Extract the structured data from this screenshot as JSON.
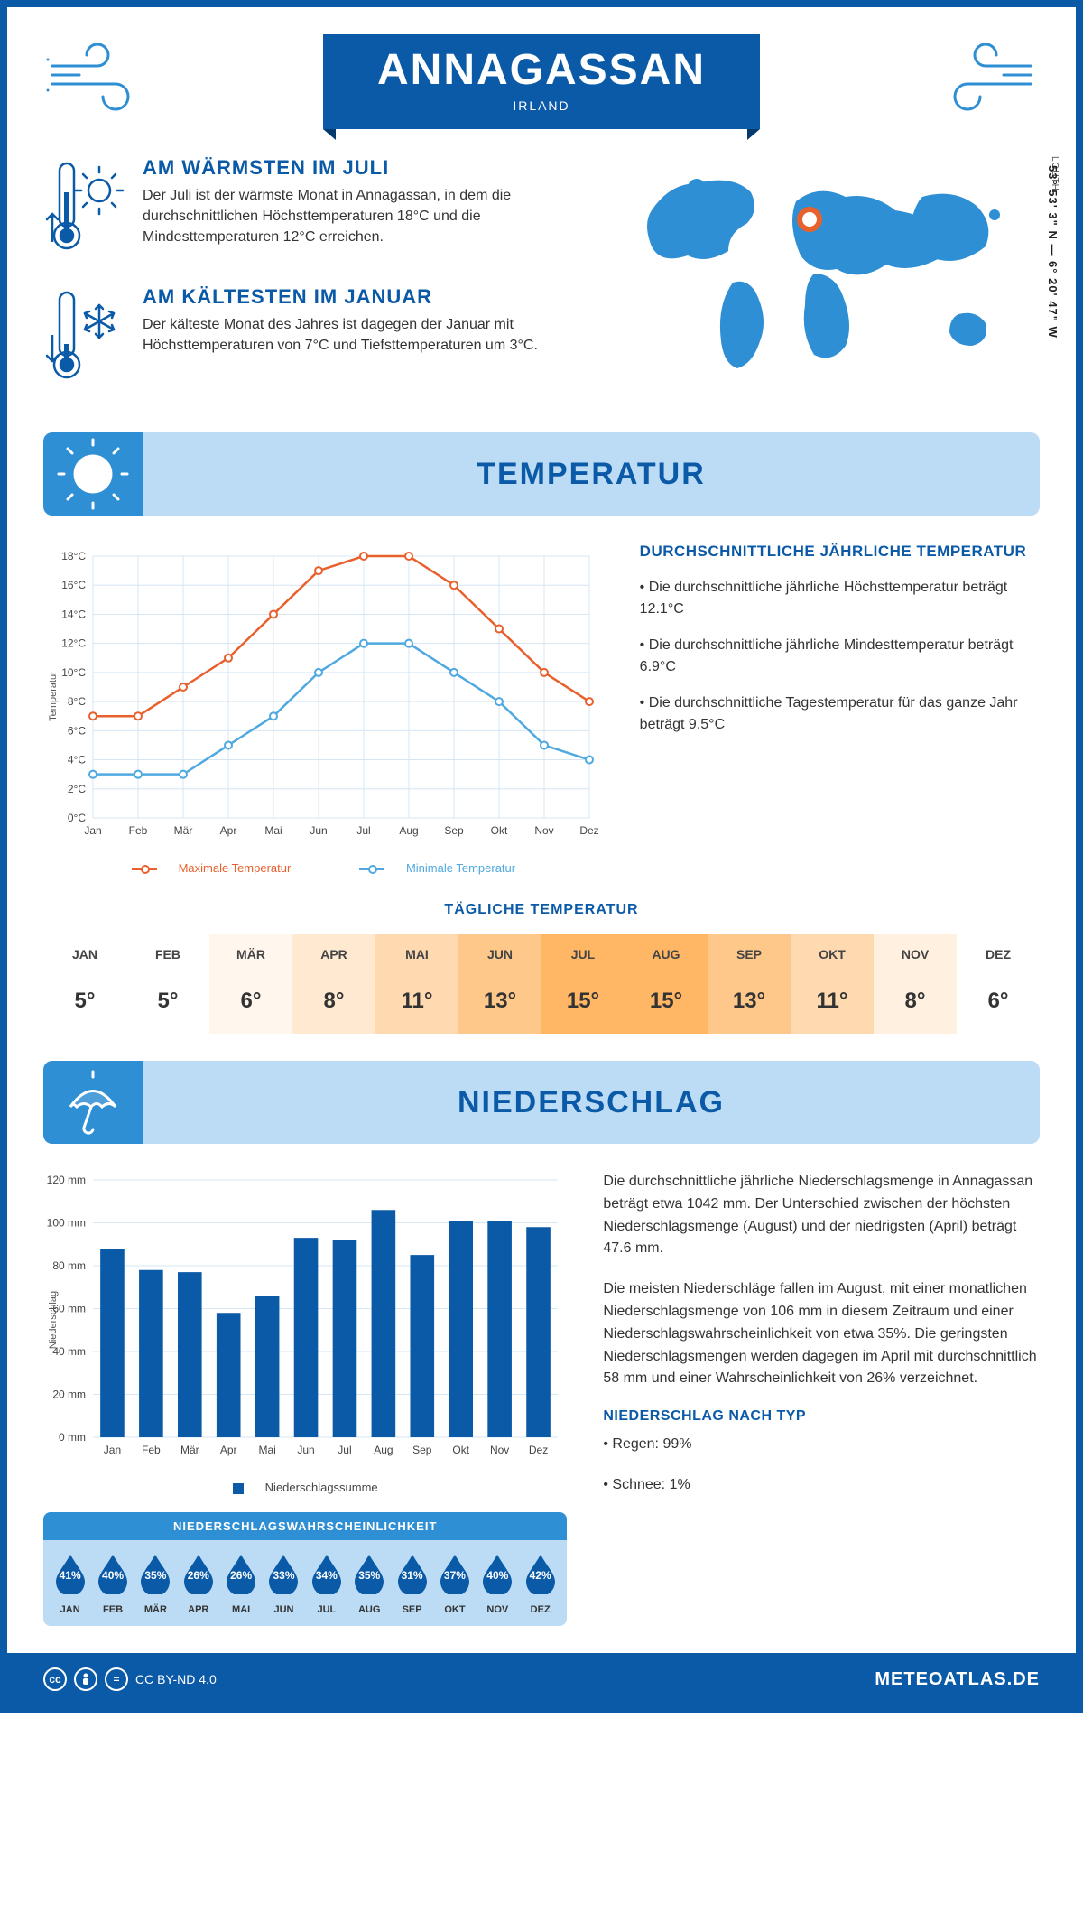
{
  "header": {
    "title": "ANNAGASSAN",
    "country": "IRLAND",
    "coords": "53° 53' 3\" N — 6° 20' 47\" W",
    "region": "LOUTH"
  },
  "facts": {
    "warm": {
      "title": "AM WÄRMSTEN IM JULI",
      "text": "Der Juli ist der wärmste Monat in Annagassan, in dem die durchschnittlichen Höchsttemperaturen 18°C und die Mindesttemperaturen 12°C erreichen."
    },
    "cold": {
      "title": "AM KÄLTESTEN IM JANUAR",
      "text": "Der kälteste Monat des Jahres ist dagegen der Januar mit Höchsttemperaturen von 7°C und Tiefsttemperaturen um 3°C."
    }
  },
  "sections": {
    "temp": "TEMPERATUR",
    "precip": "NIEDERSCHLAG"
  },
  "temp_chart": {
    "months": [
      "Jan",
      "Feb",
      "Mär",
      "Apr",
      "Mai",
      "Jun",
      "Jul",
      "Aug",
      "Sep",
      "Okt",
      "Nov",
      "Dez"
    ],
    "max": [
      7,
      7,
      9,
      11,
      14,
      17,
      18,
      18,
      16,
      13,
      10,
      8
    ],
    "min": [
      3,
      3,
      3,
      5,
      7,
      10,
      12,
      12,
      10,
      8,
      5,
      4
    ],
    "ylim": [
      0,
      18
    ],
    "ystep": 2,
    "ylabel": "Temperatur",
    "colors": {
      "max": "#e8602c",
      "min": "#4fa9e0",
      "grid": "#d5e6f5"
    },
    "legend_max": "Maximale Temperatur",
    "legend_min": "Minimale Temperatur"
  },
  "temp_stats": {
    "title": "DURCHSCHNITTLICHE JÄHRLICHE TEMPERATUR",
    "l1": "• Die durchschnittliche jährliche Höchsttemperatur beträgt 12.1°C",
    "l2": "• Die durchschnittliche jährliche Mindesttemperatur beträgt 6.9°C",
    "l3": "• Die durchschnittliche Tagestemperatur für das ganze Jahr beträgt 9.5°C"
  },
  "daily": {
    "title": "TÄGLICHE TEMPERATUR",
    "months": [
      "JAN",
      "FEB",
      "MÄR",
      "APR",
      "MAI",
      "JUN",
      "JUL",
      "AUG",
      "SEP",
      "OKT",
      "NOV",
      "DEZ"
    ],
    "values": [
      "5°",
      "5°",
      "6°",
      "8°",
      "11°",
      "13°",
      "15°",
      "15°",
      "13°",
      "11°",
      "8°",
      "6°"
    ],
    "colors": [
      "#ffffff",
      "#ffffff",
      "#fff6ed",
      "#ffe9d1",
      "#ffd9af",
      "#ffc88b",
      "#ffb765",
      "#ffb765",
      "#ffc88b",
      "#ffd9af",
      "#fff0e0",
      "#ffffff"
    ]
  },
  "precip_chart": {
    "months": [
      "Jan",
      "Feb",
      "Mär",
      "Apr",
      "Mai",
      "Jun",
      "Jul",
      "Aug",
      "Sep",
      "Okt",
      "Nov",
      "Dez"
    ],
    "values": [
      88,
      78,
      77,
      58,
      66,
      93,
      92,
      106,
      85,
      101,
      101,
      98
    ],
    "ylim": [
      0,
      120
    ],
    "ystep": 20,
    "ylabel": "Niederschlag",
    "bar_color": "#0b5aa7",
    "grid": "#d5e6f5",
    "legend": "Niederschlagssumme"
  },
  "precip_text": {
    "p1": "Die durchschnittliche jährliche Niederschlagsmenge in Annagassan beträgt etwa 1042 mm. Der Unterschied zwischen der höchsten Niederschlagsmenge (August) und der niedrigsten (April) beträgt 47.6 mm.",
    "p2": "Die meisten Niederschläge fallen im August, mit einer monatlichen Niederschlagsmenge von 106 mm in diesem Zeitraum und einer Niederschlagswahrscheinlichkeit von etwa 35%. Die geringsten Niederschlagsmengen werden dagegen im April mit durchschnittlich 58 mm und einer Wahrscheinlichkeit von 26% verzeichnet.",
    "type_title": "NIEDERSCHLAG NACH TYP",
    "type1": "• Regen: 99%",
    "type2": "• Schnee: 1%"
  },
  "prob": {
    "title": "NIEDERSCHLAGSWAHRSCHEINLICHKEIT",
    "months": [
      "JAN",
      "FEB",
      "MÄR",
      "APR",
      "MAI",
      "JUN",
      "JUL",
      "AUG",
      "SEP",
      "OKT",
      "NOV",
      "DEZ"
    ],
    "values": [
      "41%",
      "40%",
      "35%",
      "26%",
      "26%",
      "33%",
      "34%",
      "35%",
      "31%",
      "37%",
      "40%",
      "42%"
    ],
    "drop_color": "#0b5aa7"
  },
  "footer": {
    "license": "CC BY-ND 4.0",
    "brand": "METEOATLAS.DE"
  }
}
